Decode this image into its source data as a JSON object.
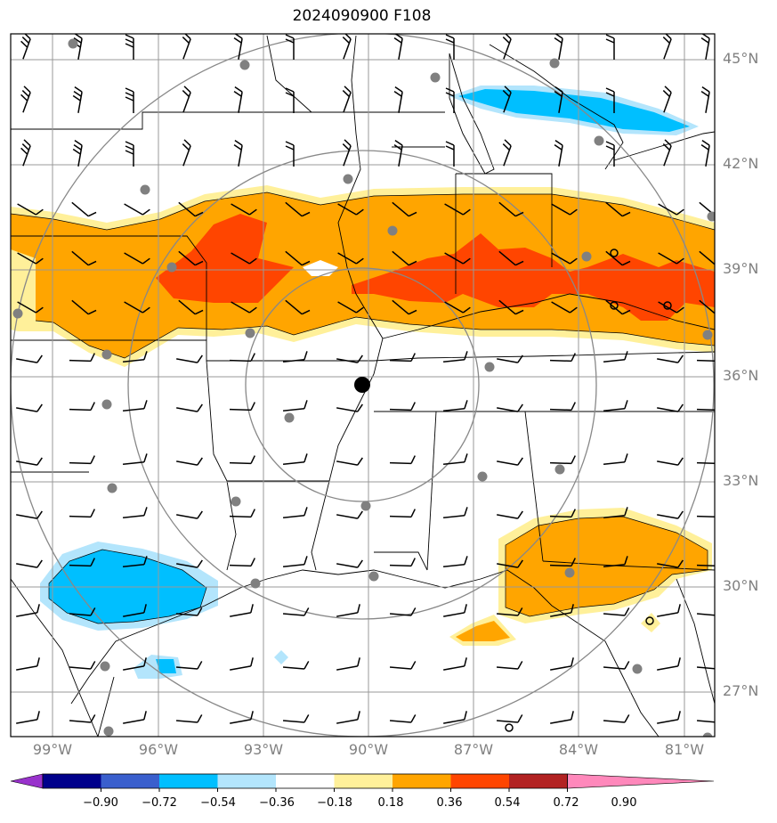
{
  "title": "2024090900 F108",
  "lat_labels": [
    "45°N",
    "42°N",
    "39°N",
    "36°N",
    "33°N",
    "30°N",
    "27°N"
  ],
  "lon_labels": [
    "99°W",
    "96°W",
    "93°W",
    "90°W",
    "87°W",
    "84°W",
    "81°W"
  ],
  "colorbar": {
    "ticks": [
      "−0.90",
      "−0.72",
      "−0.54",
      "−0.36",
      "−0.18",
      "0.18",
      "0.36",
      "0.54",
      "0.72",
      "0.90"
    ],
    "colors": [
      "#9932cc",
      "#00008b",
      "#3a5fcd",
      "#00bfff",
      "#b3e5fc",
      "#ffffff",
      "#fff09a",
      "#ffa500",
      "#ff4500",
      "#b22222",
      "#ff88bb"
    ]
  },
  "colors": {
    "orange": "#ffa500",
    "red": "#ff4500",
    "yellow": "#fff09a",
    "blue": "#00bfff",
    "lightblue": "#b3e5fc",
    "grid": "#999999",
    "ring": "#888888",
    "station": "#808080"
  }
}
